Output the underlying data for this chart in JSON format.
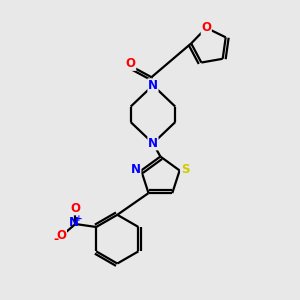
{
  "bg_color": "#e8e8e8",
  "bond_color": "black",
  "bond_lw": 1.6,
  "atom_colors": {
    "O": "#ff0000",
    "N": "#0000ff",
    "S": "#cccc00",
    "C": "black"
  },
  "font_size": 8.5,
  "fig_bg": "#e8e8e8"
}
